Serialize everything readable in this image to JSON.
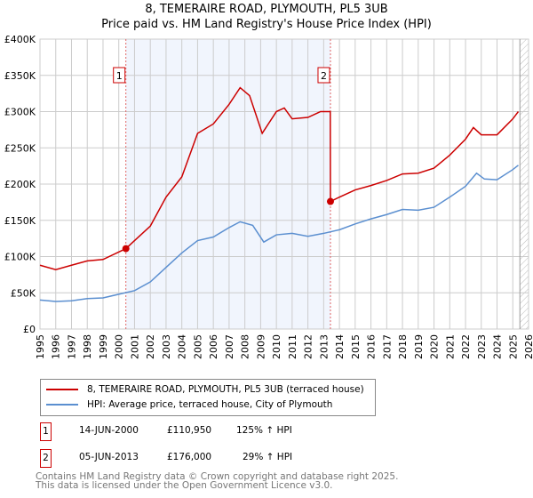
{
  "chart_data": {
    "type": "line",
    "title": "8, TEMERAIRE ROAD, PLYMOUTH, PL5 3UB",
    "subtitle": "Price paid vs. HM Land Registry's House Price Index (HPI)",
    "xlim": [
      1995,
      2026
    ],
    "ylim": [
      0,
      400000
    ],
    "x_ticks": [
      "1995",
      "1996",
      "1997",
      "1998",
      "1999",
      "2000",
      "2001",
      "2002",
      "2003",
      "2004",
      "2005",
      "2006",
      "2007",
      "2008",
      "2009",
      "2010",
      "2011",
      "2012",
      "2013",
      "2014",
      "2015",
      "2016",
      "2017",
      "2018",
      "2019",
      "2020",
      "2021",
      "2022",
      "2023",
      "2024",
      "2025",
      "2026"
    ],
    "y_ticks": [
      {
        "v": 0,
        "label": "£0"
      },
      {
        "v": 50000,
        "label": "£50K"
      },
      {
        "v": 100000,
        "label": "£100K"
      },
      {
        "v": 150000,
        "label": "£150K"
      },
      {
        "v": 200000,
        "label": "£200K"
      },
      {
        "v": 250000,
        "label": "£250K"
      },
      {
        "v": 300000,
        "label": "£300K"
      },
      {
        "v": 350000,
        "label": "£350K"
      },
      {
        "v": 400000,
        "label": "£400K"
      }
    ],
    "grid": true,
    "series": [
      {
        "name": "8, TEMERAIRE ROAD, PLYMOUTH, PL5 3UB (terraced house)",
        "color": "#cc0000",
        "points": [
          [
            1995,
            88000
          ],
          [
            1996,
            82000
          ],
          [
            1997,
            88000
          ],
          [
            1998,
            94000
          ],
          [
            1999,
            96000
          ],
          [
            2000.45,
            110950
          ],
          [
            2001,
            122000
          ],
          [
            2002,
            142000
          ],
          [
            2003,
            182000
          ],
          [
            2004,
            210000
          ],
          [
            2005,
            270000
          ],
          [
            2006,
            283000
          ],
          [
            2007,
            310000
          ],
          [
            2007.7,
            333000
          ],
          [
            2008.3,
            322000
          ],
          [
            2009.1,
            270000
          ],
          [
            2010,
            300000
          ],
          [
            2010.5,
            305000
          ],
          [
            2011,
            290000
          ],
          [
            2012,
            292000
          ],
          [
            2012.8,
            300000
          ],
          [
            2013.42,
            300000
          ],
          [
            2013.43,
            176000
          ],
          [
            2014,
            182000
          ],
          [
            2015,
            192000
          ],
          [
            2016,
            198000
          ],
          [
            2017,
            205000
          ],
          [
            2018,
            214000
          ],
          [
            2019,
            215000
          ],
          [
            2020,
            222000
          ],
          [
            2021,
            240000
          ],
          [
            2022,
            262000
          ],
          [
            2022.5,
            278000
          ],
          [
            2023,
            268000
          ],
          [
            2024,
            268000
          ],
          [
            2025,
            290000
          ],
          [
            2025.35,
            300000
          ]
        ]
      },
      {
        "name": "HPI: Average price, terraced house, City of Plymouth",
        "color": "#5b8fd0",
        "points": [
          [
            1995,
            40000
          ],
          [
            1996,
            38000
          ],
          [
            1997,
            39000
          ],
          [
            1998,
            42000
          ],
          [
            1999,
            43000
          ],
          [
            2000,
            48000
          ],
          [
            2001,
            53000
          ],
          [
            2002,
            65000
          ],
          [
            2003,
            85000
          ],
          [
            2004,
            105000
          ],
          [
            2005,
            122000
          ],
          [
            2006,
            127000
          ],
          [
            2007,
            140000
          ],
          [
            2007.7,
            148000
          ],
          [
            2008.5,
            143000
          ],
          [
            2009.2,
            120000
          ],
          [
            2010,
            130000
          ],
          [
            2011,
            132000
          ],
          [
            2012,
            128000
          ],
          [
            2013,
            132000
          ],
          [
            2014,
            137000
          ],
          [
            2015,
            145000
          ],
          [
            2016,
            152000
          ],
          [
            2017,
            158000
          ],
          [
            2018,
            165000
          ],
          [
            2019,
            164000
          ],
          [
            2020,
            168000
          ],
          [
            2021,
            182000
          ],
          [
            2022,
            197000
          ],
          [
            2022.7,
            215000
          ],
          [
            2023.2,
            207000
          ],
          [
            2024,
            206000
          ],
          [
            2025,
            220000
          ],
          [
            2025.35,
            226000
          ]
        ]
      }
    ],
    "sales": [
      {
        "id": "1",
        "x": 2000.45,
        "date": "14-JUN-2000",
        "price": 110950,
        "price_label": "£110,950",
        "hpi": "125% ↑ HPI"
      },
      {
        "id": "2",
        "x": 2013.43,
        "date": "05-JUN-2013",
        "price": 176000,
        "price_label": "£176,000",
        "hpi": "29% ↑ HPI"
      }
    ],
    "forecast_from": 2025.45
  },
  "footer": {
    "line1": "Contains HM Land Registry data © Crown copyright and database right 2025.",
    "line2": "This data is licensed under the Open Government Licence v3.0."
  }
}
